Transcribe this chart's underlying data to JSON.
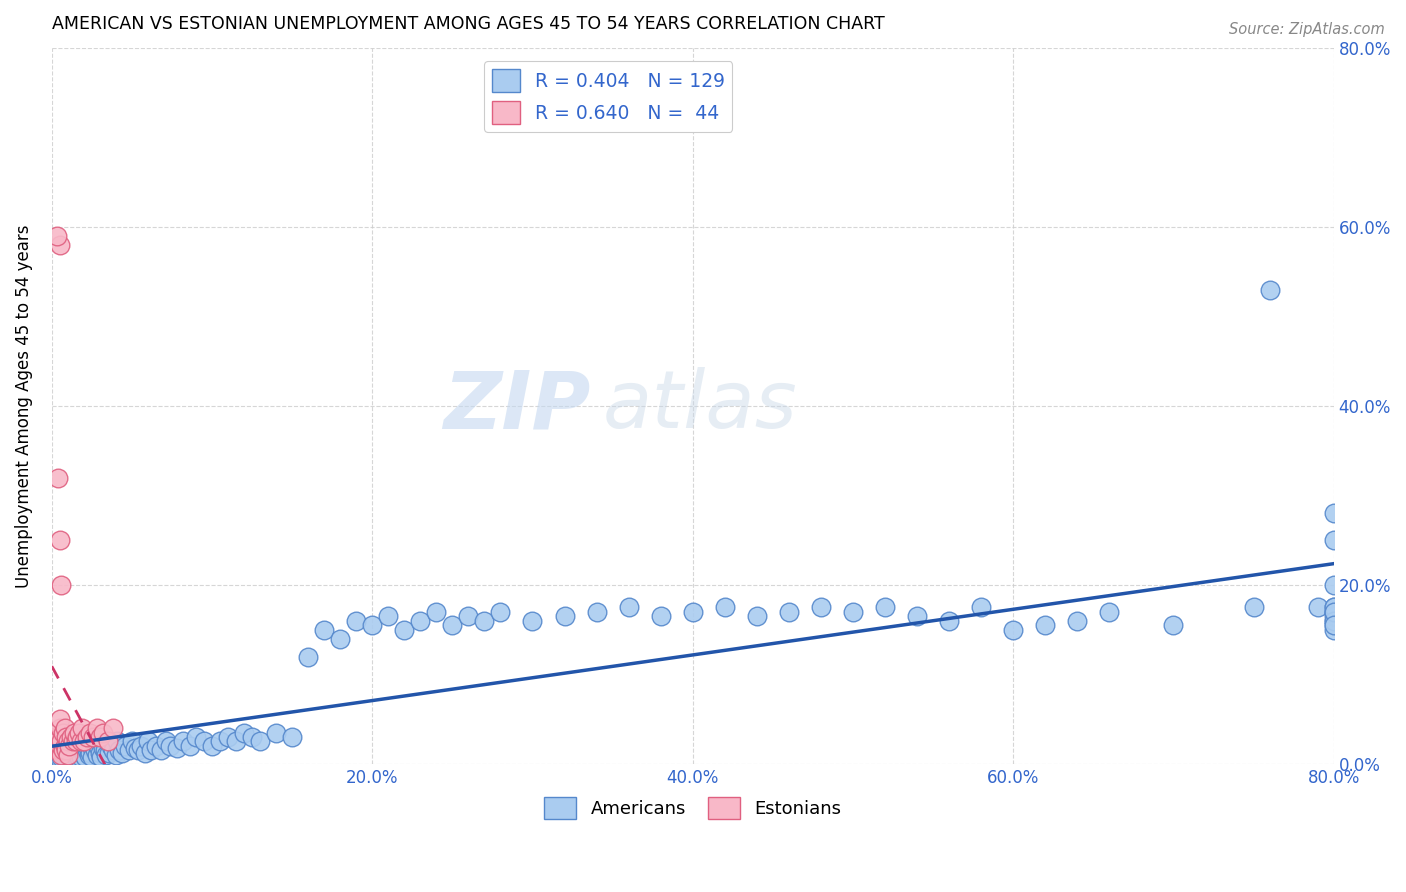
{
  "title": "AMERICAN VS ESTONIAN UNEMPLOYMENT AMONG AGES 45 TO 54 YEARS CORRELATION CHART",
  "source": "Source: ZipAtlas.com",
  "ylabel": "Unemployment Among Ages 45 to 54 years",
  "xlim": [
    0.0,
    0.8
  ],
  "ylim": [
    0.0,
    0.8
  ],
  "xticks": [
    0.0,
    0.2,
    0.4,
    0.6,
    0.8
  ],
  "yticks": [
    0.0,
    0.2,
    0.4,
    0.6,
    0.8
  ],
  "american_R": 0.404,
  "american_N": 129,
  "estonian_R": 0.64,
  "estonian_N": 44,
  "american_color": "#aaccf0",
  "american_edge_color": "#5588cc",
  "american_line_color": "#2255aa",
  "estonian_color": "#f8b8c8",
  "estonian_edge_color": "#e06080",
  "estonian_line_color": "#cc3366",
  "watermark_zip": "ZIP",
  "watermark_atlas": "atlas",
  "american_x": [
    0.004,
    0.005,
    0.006,
    0.007,
    0.008,
    0.009,
    0.01,
    0.01,
    0.01,
    0.011,
    0.011,
    0.012,
    0.012,
    0.013,
    0.013,
    0.014,
    0.014,
    0.015,
    0.015,
    0.016,
    0.016,
    0.017,
    0.017,
    0.018,
    0.018,
    0.019,
    0.02,
    0.02,
    0.021,
    0.022,
    0.022,
    0.023,
    0.024,
    0.025,
    0.025,
    0.026,
    0.027,
    0.028,
    0.029,
    0.03,
    0.031,
    0.032,
    0.033,
    0.034,
    0.035,
    0.036,
    0.037,
    0.038,
    0.04,
    0.041,
    0.042,
    0.044,
    0.046,
    0.048,
    0.05,
    0.052,
    0.054,
    0.056,
    0.058,
    0.06,
    0.062,
    0.065,
    0.068,
    0.071,
    0.074,
    0.078,
    0.082,
    0.086,
    0.09,
    0.095,
    0.1,
    0.105,
    0.11,
    0.115,
    0.12,
    0.125,
    0.13,
    0.14,
    0.15,
    0.16,
    0.17,
    0.18,
    0.19,
    0.2,
    0.21,
    0.22,
    0.23,
    0.24,
    0.25,
    0.26,
    0.27,
    0.28,
    0.3,
    0.32,
    0.34,
    0.36,
    0.38,
    0.4,
    0.42,
    0.44,
    0.46,
    0.48,
    0.5,
    0.52,
    0.54,
    0.56,
    0.58,
    0.6,
    0.62,
    0.64,
    0.66,
    0.7,
    0.75,
    0.76,
    0.79,
    0.8,
    0.8,
    0.8,
    0.8,
    0.8,
    0.8,
    0.8,
    0.8,
    0.8,
    0.8,
    0.8,
    0.8,
    0.8,
    0.8
  ],
  "american_y": [
    0.01,
    0.005,
    0.008,
    0.012,
    0.006,
    0.015,
    0.008,
    0.02,
    0.004,
    0.01,
    0.006,
    0.015,
    0.008,
    0.012,
    0.02,
    0.005,
    0.018,
    0.008,
    0.025,
    0.01,
    0.015,
    0.006,
    0.02,
    0.012,
    0.008,
    0.025,
    0.01,
    0.03,
    0.008,
    0.015,
    0.02,
    0.01,
    0.012,
    0.018,
    0.008,
    0.025,
    0.015,
    0.01,
    0.02,
    0.012,
    0.008,
    0.018,
    0.015,
    0.01,
    0.025,
    0.012,
    0.02,
    0.015,
    0.01,
    0.025,
    0.015,
    0.012,
    0.02,
    0.015,
    0.025,
    0.018,
    0.015,
    0.02,
    0.012,
    0.025,
    0.015,
    0.02,
    0.015,
    0.025,
    0.02,
    0.018,
    0.025,
    0.02,
    0.03,
    0.025,
    0.02,
    0.025,
    0.03,
    0.025,
    0.035,
    0.03,
    0.025,
    0.035,
    0.03,
    0.12,
    0.15,
    0.14,
    0.16,
    0.155,
    0.165,
    0.15,
    0.16,
    0.17,
    0.155,
    0.165,
    0.16,
    0.17,
    0.16,
    0.165,
    0.17,
    0.175,
    0.165,
    0.17,
    0.175,
    0.165,
    0.17,
    0.175,
    0.17,
    0.175,
    0.165,
    0.16,
    0.175,
    0.15,
    0.155,
    0.16,
    0.17,
    0.155,
    0.175,
    0.53,
    0.175,
    0.2,
    0.17,
    0.25,
    0.28,
    0.175,
    0.16,
    0.17,
    0.165,
    0.175,
    0.155,
    0.15,
    0.16,
    0.17,
    0.155
  ],
  "estonian_x": [
    0.002,
    0.003,
    0.003,
    0.004,
    0.004,
    0.005,
    0.005,
    0.005,
    0.005,
    0.005,
    0.005,
    0.006,
    0.006,
    0.007,
    0.007,
    0.008,
    0.008,
    0.009,
    0.009,
    0.01,
    0.01,
    0.011,
    0.012,
    0.013,
    0.014,
    0.015,
    0.016,
    0.017,
    0.018,
    0.019,
    0.02,
    0.022,
    0.024,
    0.026,
    0.028,
    0.03,
    0.032,
    0.035,
    0.038,
    0.005,
    0.004,
    0.003,
    0.005,
    0.006
  ],
  "estonian_y": [
    0.03,
    0.015,
    0.025,
    0.02,
    0.03,
    0.015,
    0.02,
    0.025,
    0.03,
    0.04,
    0.05,
    0.01,
    0.025,
    0.015,
    0.035,
    0.02,
    0.04,
    0.015,
    0.03,
    0.01,
    0.025,
    0.02,
    0.03,
    0.025,
    0.035,
    0.025,
    0.03,
    0.035,
    0.025,
    0.04,
    0.025,
    0.03,
    0.035,
    0.03,
    0.04,
    0.03,
    0.035,
    0.025,
    0.04,
    0.58,
    0.32,
    0.59,
    0.25,
    0.2
  ]
}
